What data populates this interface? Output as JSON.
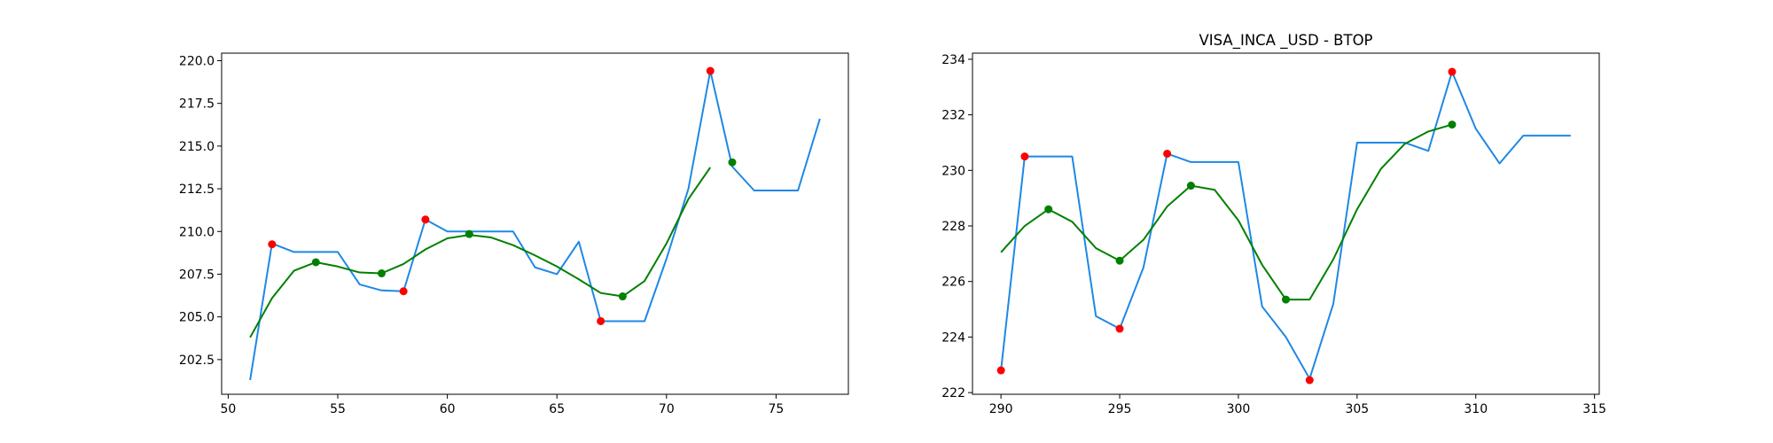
{
  "chart_data": [
    {
      "type": "line",
      "title": "",
      "xlabel": "",
      "ylabel": "",
      "xlim": [
        49.7,
        78.3
      ],
      "ylim": [
        200.47,
        220.44
      ],
      "xticks": [
        50,
        55,
        60,
        65,
        70,
        75
      ],
      "xtick_labels": [
        "50",
        "55",
        "60",
        "65",
        "70",
        "75"
      ],
      "yticks": [
        202.5,
        205.0,
        207.5,
        210.0,
        212.5,
        215.0,
        217.5,
        220.0
      ],
      "ytick_labels": [
        "202.5",
        "205.0",
        "207.5",
        "210.0",
        "212.5",
        "215.0",
        "217.5",
        "220.0"
      ],
      "grid": false,
      "colors": {
        "price": "#1e88e5",
        "smooth": "#008000",
        "max_min": "#ff0000",
        "smooth_extrema": "#008000"
      },
      "series": [
        {
          "role": "price",
          "x": [
            51,
            52,
            53,
            54,
            55,
            56,
            57,
            58,
            59,
            60,
            61,
            62,
            63,
            64,
            65,
            66,
            67,
            68,
            69,
            70,
            71,
            72,
            73,
            74,
            75,
            76,
            77
          ],
          "y": [
            201.3,
            209.3,
            208.8,
            208.8,
            208.8,
            206.9,
            206.55,
            206.5,
            210.7,
            210.0,
            210.0,
            210.0,
            210.0,
            207.9,
            207.5,
            209.4,
            204.75,
            204.75,
            204.75,
            208.4,
            212.5,
            219.4,
            213.8,
            212.4,
            212.4,
            212.4,
            216.6
          ]
        },
        {
          "role": "smooth",
          "x": [
            51,
            52,
            53,
            54,
            55,
            56,
            57,
            58,
            59,
            60,
            61,
            62,
            63,
            64,
            65,
            66,
            67,
            68,
            69,
            70,
            71,
            72
          ],
          "y": [
            203.8,
            206.1,
            207.7,
            208.2,
            207.95,
            207.6,
            207.55,
            208.1,
            208.95,
            209.6,
            209.8,
            209.65,
            209.2,
            208.6,
            207.95,
            207.2,
            206.4,
            206.2,
            207.1,
            209.3,
            211.9,
            213.75
          ]
        }
      ],
      "markers": [
        {
          "role": "max_min",
          "points": [
            [
              52,
              209.25
            ],
            [
              58,
              206.5
            ],
            [
              59,
              210.7
            ],
            [
              67,
              204.75
            ],
            [
              72,
              219.4
            ]
          ]
        },
        {
          "role": "smooth_extrema",
          "points": [
            [
              54,
              208.2
            ],
            [
              57,
              207.55
            ],
            [
              61,
              209.85
            ],
            [
              68,
              206.2
            ],
            [
              73,
              214.05
            ]
          ]
        }
      ]
    },
    {
      "type": "line",
      "title": "VISA_INCA _USD - BTOP",
      "xlabel": "",
      "ylabel": "",
      "xlim": [
        288.8,
        315.2
      ],
      "ylim": [
        221.94,
        234.22
      ],
      "xticks": [
        290,
        295,
        300,
        305,
        310,
        315
      ],
      "xtick_labels": [
        "290",
        "295",
        "300",
        "305",
        "310",
        "315"
      ],
      "yticks": [
        222,
        224,
        226,
        228,
        230,
        232,
        234
      ],
      "ytick_labels": [
        "222",
        "224",
        "226",
        "228",
        "230",
        "232",
        "234"
      ],
      "grid": false,
      "colors": {
        "price": "#1e88e5",
        "smooth": "#008000",
        "max_min": "#ff0000",
        "smooth_extrema": "#008000"
      },
      "series": [
        {
          "role": "price",
          "x": [
            290,
            291,
            292,
            293,
            294,
            295,
            296,
            297,
            298,
            299,
            300,
            301,
            302,
            303,
            304,
            305,
            306,
            307,
            308,
            309,
            310,
            311,
            312,
            313,
            314
          ],
          "y": [
            222.8,
            230.5,
            230.5,
            230.5,
            224.75,
            224.3,
            226.5,
            230.6,
            230.3,
            230.3,
            230.3,
            225.1,
            224.0,
            222.5,
            225.2,
            231.0,
            231.0,
            231.0,
            230.7,
            233.55,
            231.5,
            230.25,
            231.25,
            231.25,
            231.25
          ]
        },
        {
          "role": "smooth",
          "x": [
            290,
            291,
            292,
            293,
            294,
            295,
            296,
            297,
            298,
            299,
            300,
            301,
            302,
            303,
            304,
            305,
            306,
            307,
            308,
            309
          ],
          "y": [
            227.05,
            228.0,
            228.6,
            228.15,
            227.2,
            226.75,
            227.5,
            228.7,
            229.45,
            229.3,
            228.2,
            226.6,
            225.35,
            225.35,
            226.8,
            228.6,
            230.05,
            230.95,
            231.4,
            231.65
          ]
        }
      ],
      "markers": [
        {
          "role": "max_min",
          "points": [
            [
              290,
              222.8
            ],
            [
              291,
              230.5
            ],
            [
              295,
              224.3
            ],
            [
              297,
              230.6
            ],
            [
              303,
              222.45
            ],
            [
              309,
              233.55
            ]
          ]
        },
        {
          "role": "smooth_extrema",
          "points": [
            [
              292,
              228.6
            ],
            [
              295,
              226.75
            ],
            [
              298,
              229.45
            ],
            [
              302,
              225.35
            ],
            [
              309,
              231.65
            ]
          ]
        }
      ]
    }
  ]
}
